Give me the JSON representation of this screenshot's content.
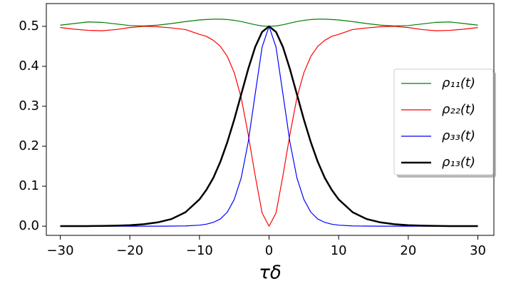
{
  "chart_data": {
    "type": "line",
    "xlabel": "τδ",
    "x": [
      -30,
      -28,
      -26,
      -24,
      -22,
      -20,
      -18,
      -16,
      -14,
      -12,
      -10,
      -9,
      -8,
      -7,
      -6,
      -5,
      -4,
      -3,
      -2,
      -1,
      0,
      1,
      2,
      3,
      4,
      5,
      6,
      7,
      8,
      9,
      10,
      12,
      14,
      16,
      18,
      20,
      22,
      24,
      26,
      28,
      30
    ],
    "series": [
      {
        "name": "ρ₁₁(t)",
        "color": "#008000",
        "width": 1.2,
        "values": [
          0.503,
          0.507,
          0.511,
          0.51,
          0.506,
          0.502,
          0.501,
          0.503,
          0.507,
          0.512,
          0.516,
          0.517,
          0.518,
          0.518,
          0.517,
          0.515,
          0.512,
          0.508,
          0.504,
          0.501,
          0.5,
          0.501,
          0.504,
          0.508,
          0.512,
          0.515,
          0.517,
          0.518,
          0.518,
          0.517,
          0.516,
          0.512,
          0.507,
          0.503,
          0.501,
          0.502,
          0.506,
          0.51,
          0.511,
          0.507,
          0.503
        ]
      },
      {
        "name": "ρ₂₂(t)",
        "color": "#ff0000",
        "width": 1.2,
        "values": [
          0.497,
          0.493,
          0.49,
          0.489,
          0.492,
          0.497,
          0.5,
          0.499,
          0.496,
          0.492,
          0.48,
          0.475,
          0.465,
          0.45,
          0.425,
          0.384,
          0.321,
          0.23,
          0.127,
          0.033,
          0,
          0.033,
          0.127,
          0.23,
          0.321,
          0.384,
          0.425,
          0.45,
          0.465,
          0.475,
          0.48,
          0.492,
          0.496,
          0.499,
          0.5,
          0.497,
          0.492,
          0.489,
          0.49,
          0.493,
          0.497
        ]
      },
      {
        "name": "ρ₃₃(t)",
        "color": "#0000ff",
        "width": 1.2,
        "values": [
          0,
          0,
          0,
          0,
          0,
          0,
          0,
          0,
          0.0002,
          0.0007,
          0.0025,
          0.005,
          0.0096,
          0.018,
          0.035,
          0.067,
          0.121,
          0.21,
          0.33,
          0.448,
          0.5,
          0.448,
          0.33,
          0.21,
          0.121,
          0.067,
          0.035,
          0.018,
          0.0096,
          0.005,
          0.0025,
          0.0007,
          0.0002,
          0,
          0,
          0,
          0,
          0,
          0,
          0,
          0
        ]
      },
      {
        "name": "ρ₁₃(t)",
        "color": "#000000",
        "width": 2.5,
        "values": [
          0.0001,
          0.0002,
          0.0003,
          0.0007,
          0.0013,
          0.0025,
          0.0049,
          0.0095,
          0.018,
          0.035,
          0.067,
          0.091,
          0.121,
          0.161,
          0.21,
          0.267,
          0.33,
          0.393,
          0.448,
          0.486,
          0.5,
          0.486,
          0.448,
          0.393,
          0.33,
          0.267,
          0.21,
          0.161,
          0.121,
          0.091,
          0.067,
          0.035,
          0.018,
          0.0095,
          0.0049,
          0.0025,
          0.0013,
          0.0007,
          0.0003,
          0.0002,
          0.0001
        ]
      }
    ],
    "xlim": [
      -32,
      32.3
    ],
    "ylim": [
      -0.023,
      0.557
    ],
    "xticks": [
      {
        "value": -30,
        "label": "−30"
      },
      {
        "value": -20,
        "label": "−20"
      },
      {
        "value": -10,
        "label": "−10"
      },
      0,
      10,
      20,
      30
    ],
    "yticks": [
      {
        "value": 0,
        "label": "0.0"
      },
      0.1,
      0.2,
      0.3,
      0.4,
      0.5
    ],
    "legend": "right"
  }
}
